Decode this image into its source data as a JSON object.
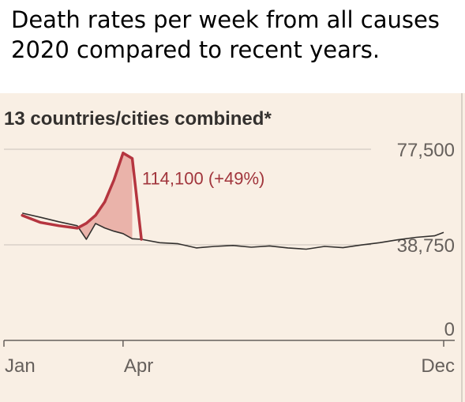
{
  "headline": {
    "line1": "Death rates per week from all causes",
    "line2": "2020 compared to recent years."
  },
  "colors": {
    "current_line": "#b5353f",
    "baseline_line": "#33302e",
    "excess_fill": "#e8a8a0",
    "grid": "#c9c2ba",
    "background": "#f9efe4"
  },
  "chart_data": {
    "type": "line",
    "subtitle": "13 countries/cities combined*",
    "x_ticks": [
      {
        "label": "Jan",
        "week": 1
      },
      {
        "label": "Apr",
        "week": 14
      },
      {
        "label": "Dec",
        "week": 49
      }
    ],
    "y_ticks": [
      {
        "label": "77,500",
        "value": 77500
      },
      {
        "label": "38,750",
        "value": 38750
      },
      {
        "label": "0",
        "value": 0
      }
    ],
    "xlim": [
      1,
      49
    ],
    "ylim": [
      0,
      77500
    ],
    "grid": "horizontal",
    "annotation": {
      "text": "114,100 (+49%)",
      "week": 14,
      "value": 76000
    },
    "series": [
      {
        "role": "recent-years",
        "color": "#33302e",
        "x": [
          3,
          5,
          7,
          9,
          10,
          11,
          12,
          13,
          14,
          15,
          16,
          18,
          20,
          22,
          24,
          26,
          28,
          30,
          32,
          34,
          36,
          38,
          40,
          42,
          44,
          46,
          48,
          49
        ],
        "y": [
          51600,
          49900,
          48100,
          46500,
          41000,
          47400,
          45600,
          44300,
          43300,
          41200,
          41000,
          39600,
          39200,
          37500,
          38100,
          38500,
          37800,
          38300,
          37500,
          37000,
          38100,
          37600,
          38700,
          39600,
          40800,
          41800,
          42400,
          43800
        ]
      },
      {
        "role": "2020",
        "color": "#b5353f",
        "x": [
          3,
          5,
          7,
          9,
          10,
          11,
          12,
          13,
          14,
          15,
          16
        ],
        "y": [
          50700,
          47800,
          46500,
          45500,
          47500,
          50700,
          56100,
          65000,
          76000,
          73800,
          41000
        ]
      }
    ]
  }
}
